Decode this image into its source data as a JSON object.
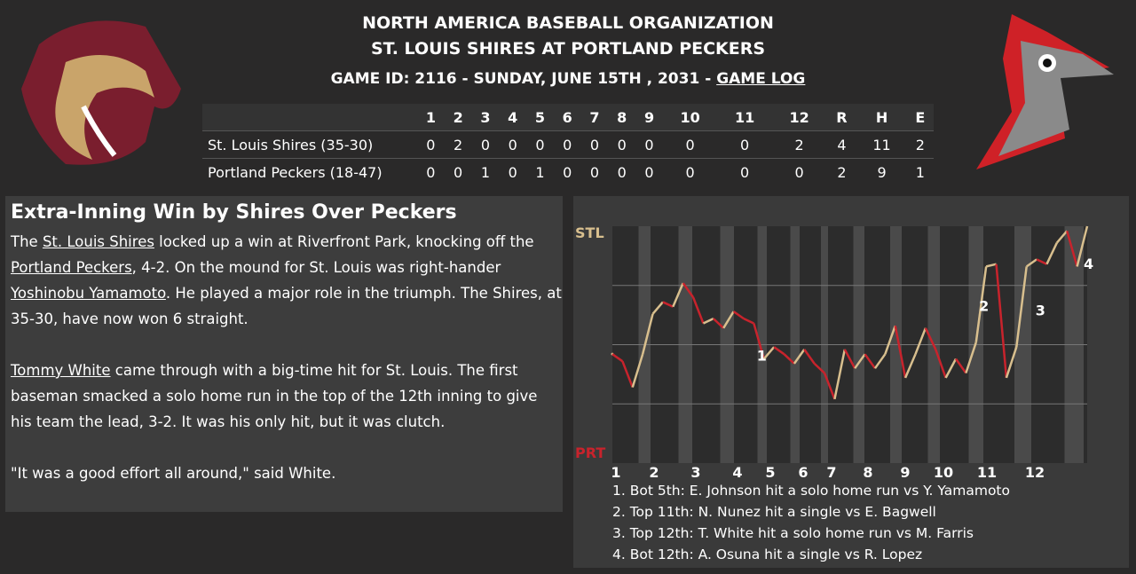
{
  "header": {
    "org": "NORTH AMERICA BASEBALL ORGANIZATION",
    "matchup": "ST. LOUIS SHIRES AT PORTLAND PECKERS",
    "game_info": "GAME ID: 2116 - SUNDAY, JUNE 15TH , 2031 - ",
    "game_log_link": "GAME LOG"
  },
  "linescore": {
    "columns": [
      "1",
      "2",
      "3",
      "4",
      "5",
      "6",
      "7",
      "8",
      "9",
      "10",
      "11",
      "12",
      "R",
      "H",
      "E"
    ],
    "rows": [
      {
        "team": "St. Louis Shires (35-30)",
        "cells": [
          0,
          2,
          0,
          0,
          0,
          0,
          0,
          0,
          0,
          0,
          0,
          2,
          4,
          11,
          2
        ]
      },
      {
        "team": "Portland Peckers (18-47)",
        "cells": [
          0,
          0,
          1,
          0,
          1,
          0,
          0,
          0,
          0,
          0,
          0,
          0,
          2,
          9,
          1
        ]
      }
    ]
  },
  "article": {
    "headline": "Extra-Inning Win by Shires Over Peckers",
    "paragraphs": [
      [
        {
          "text": "The "
        },
        {
          "text": "St. Louis Shires",
          "link": true
        },
        {
          "text": " locked up a win at Riverfront Park, knocking off the "
        },
        {
          "text": "Portland Peckers",
          "link": true
        },
        {
          "text": ", 4-2. On the mound for St. Louis was right-hander "
        },
        {
          "text": "Yoshinobu Yamamoto",
          "link": true
        },
        {
          "text": ". He played a major role in the triumph. The Shires, at 35-30, have now won 6 straight."
        }
      ],
      [
        {
          "text": "Tommy White",
          "link": true
        },
        {
          "text": " came through with a big-time hit for St. Louis. The first baseman smacked a solo home run in the top of the 12th inning to give his team the lead, 3-2. It was his only hit, but it was clutch."
        }
      ],
      [
        {
          "text": "\"It was a good effort all around,\" said White."
        }
      ]
    ]
  },
  "chart": {
    "type": "line",
    "y_top_label": "STL",
    "y_bottom_label": "PRT",
    "ylim": [
      0,
      100
    ],
    "categories": [
      "1",
      "2",
      "3",
      "4",
      "5",
      "6",
      "7",
      "8",
      "9",
      "10",
      "11",
      "12"
    ],
    "values": [
      46,
      43,
      32,
      46,
      63,
      68,
      66,
      76,
      70,
      59,
      61,
      57,
      64,
      61,
      59,
      44,
      49,
      46,
      42,
      48,
      42,
      38,
      27,
      48,
      40,
      46,
      40,
      46,
      58,
      36,
      46,
      57,
      48,
      36,
      44,
      38,
      51,
      83,
      84,
      36,
      49,
      83,
      86,
      84,
      93,
      98,
      83,
      100
    ],
    "colors": {
      "up": "#d8bf8e",
      "down": "#c8232c"
    },
    "markers": [
      "1",
      "2",
      "3",
      "4"
    ],
    "notes": [
      "1. Bot 5th: E. Johnson hit a solo home run vs Y. Yamamoto",
      "2. Top 11th: N. Nunez hit a single vs E. Bagwell",
      "3. Top 12th: T. White hit a solo home run vs M. Farris",
      "4. Bot 12th: A. Osuna hit a single vs R. Lopez"
    ]
  }
}
